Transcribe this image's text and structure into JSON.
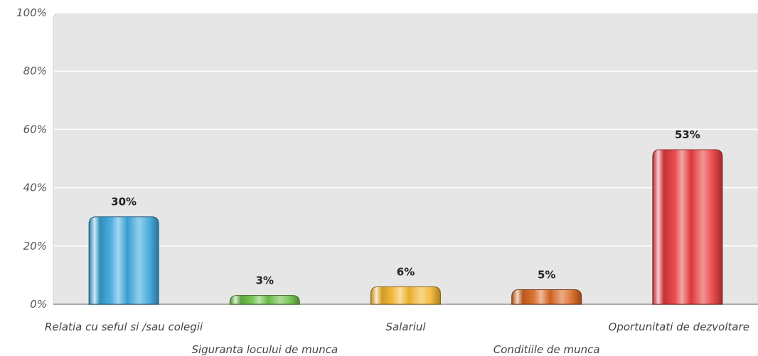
{
  "chart_data": {
    "type": "bar",
    "title": "",
    "xlabel": "",
    "ylabel": "",
    "ylim": [
      0,
      100
    ],
    "yticks": [
      0,
      20,
      40,
      60,
      80,
      100
    ],
    "ytick_labels": [
      "0%",
      "20%",
      "40%",
      "60%",
      "80%",
      "100%"
    ],
    "categories": [
      "Relatia cu seful si /sau colegii",
      "Siguranta locului de munca",
      "Salariul",
      "Conditiile de munca",
      "Oportunitati de dezvoltare"
    ],
    "values": [
      30,
      3,
      6,
      5,
      53
    ],
    "value_labels": [
      "30%",
      "3%",
      "6%",
      "5%",
      "53%"
    ],
    "colors": [
      "#3aa6dc",
      "#6cc246",
      "#f5b52c",
      "#d9651f",
      "#e83a3d"
    ],
    "plot_background": "#e6e6e6",
    "grid": true,
    "legend": "none"
  }
}
